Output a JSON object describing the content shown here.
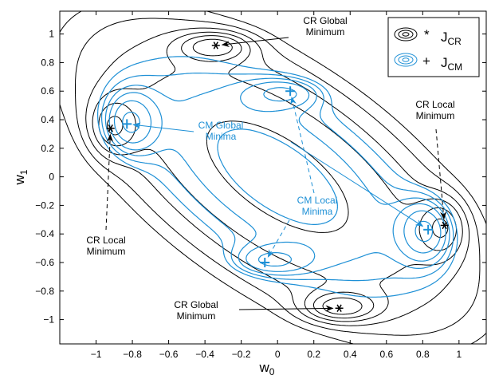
{
  "chart_data": {
    "type": "contour",
    "title": "",
    "xlabel": "w",
    "xlabel_sub": "0",
    "ylabel": "w",
    "ylabel_sub": "1",
    "xlim": [
      -1.2,
      1.15
    ],
    "ylim": [
      -1.17,
      1.16
    ],
    "xticks": [
      -1,
      -0.8,
      -0.6,
      -0.4,
      -0.2,
      0,
      0.2,
      0.4,
      0.6,
      0.8,
      1
    ],
    "yticks": [
      -1,
      -0.8,
      -0.6,
      -0.4,
      -0.2,
      0,
      0.2,
      0.4,
      0.6,
      0.8,
      1
    ],
    "legend": {
      "position": "top-right",
      "entries": [
        {
          "marker": "*",
          "label": "J",
          "sub": "CR",
          "color": "#000000"
        },
        {
          "marker": "+",
          "label": "J",
          "sub": "CM",
          "color": "#1e90d6"
        }
      ]
    },
    "series": [
      {
        "name": "J_CR",
        "color": "#000000",
        "minima": [
          {
            "x": -0.34,
            "y": 0.92,
            "kind": "global"
          },
          {
            "x": 0.34,
            "y": -0.92,
            "kind": "global"
          },
          {
            "x": -0.92,
            "y": 0.34,
            "kind": "local"
          },
          {
            "x": 0.92,
            "y": -0.34,
            "kind": "local"
          }
        ]
      },
      {
        "name": "J_CM",
        "color": "#1e90d6",
        "minima": [
          {
            "x": -0.83,
            "y": 0.37,
            "kind": "global"
          },
          {
            "x": 0.83,
            "y": -0.37,
            "kind": "global"
          },
          {
            "x": 0.07,
            "y": 0.6,
            "kind": "local"
          },
          {
            "x": -0.07,
            "y": -0.6,
            "kind": "local"
          }
        ]
      }
    ],
    "annotations": [
      {
        "lines": [
          "CR Global",
          "Minimum"
        ],
        "color": "#000000",
        "dashed": false,
        "targets": [
          [
            -0.34,
            0.92
          ]
        ]
      },
      {
        "lines": [
          "CR Global",
          "Minimum"
        ],
        "color": "#000000",
        "dashed": false,
        "targets": [
          [
            0.34,
            -0.92
          ]
        ]
      },
      {
        "lines": [
          "CR Local",
          "Minimum"
        ],
        "color": "#000000",
        "dashed": true,
        "targets": [
          [
            0.92,
            -0.34
          ]
        ]
      },
      {
        "lines": [
          "CR Local",
          "Minimum"
        ],
        "color": "#000000",
        "dashed": true,
        "targets": [
          [
            -0.92,
            0.34
          ]
        ]
      },
      {
        "lines": [
          "CM Global",
          "Minima"
        ],
        "color": "#1e90d6",
        "dashed": false,
        "targets": [
          [
            -0.83,
            0.37
          ],
          [
            0.83,
            -0.37
          ]
        ]
      },
      {
        "lines": [
          "CM Local",
          "Minima"
        ],
        "color": "#1e90d6",
        "dashed": true,
        "targets": [
          [
            0.07,
            0.6
          ],
          [
            -0.07,
            -0.6
          ]
        ]
      }
    ]
  }
}
